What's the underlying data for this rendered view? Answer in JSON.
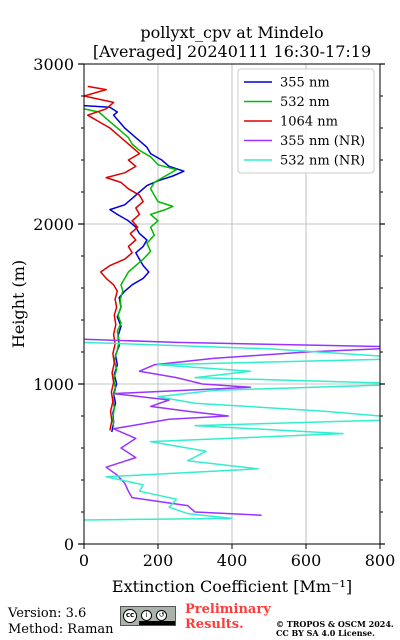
{
  "chart_data": {
    "type": "line",
    "title": [
      "pollyxt_cpv at Mindelo",
      "[Averaged] 20240111 16:30-17:19"
    ],
    "xlabel": "Extinction Coefficient [Mm⁻¹]",
    "ylabel": "Height (m)",
    "xlim": [
      0,
      800
    ],
    "ylim": [
      0,
      3000
    ],
    "xticks": [
      0,
      200,
      400,
      600,
      800
    ],
    "yticks": [
      0,
      1000,
      2000,
      3000
    ],
    "grid": true,
    "legend_position": "top-right",
    "series": [
      {
        "name": "355 nm",
        "color": "#0000dd",
        "points": [
          [
            75,
            700
          ],
          [
            80,
            760
          ],
          [
            78,
            820
          ],
          [
            85,
            880
          ],
          [
            80,
            940
          ],
          [
            88,
            1000
          ],
          [
            82,
            1060
          ],
          [
            90,
            1120
          ],
          [
            85,
            1180
          ],
          [
            95,
            1240
          ],
          [
            92,
            1300
          ],
          [
            100,
            1360
          ],
          [
            90,
            1420
          ],
          [
            100,
            1480
          ],
          [
            95,
            1540
          ],
          [
            110,
            1580
          ],
          [
            130,
            1620
          ],
          [
            160,
            1660
          ],
          [
            175,
            1700
          ],
          [
            160,
            1740
          ],
          [
            150,
            1780
          ],
          [
            140,
            1820
          ],
          [
            160,
            1860
          ],
          [
            170,
            1900
          ],
          [
            150,
            1940
          ],
          [
            140,
            1980
          ],
          [
            120,
            2020
          ],
          [
            90,
            2060
          ],
          [
            70,
            2090
          ],
          [
            110,
            2120
          ],
          [
            130,
            2160
          ],
          [
            150,
            2200
          ],
          [
            170,
            2240
          ],
          [
            200,
            2270
          ],
          [
            240,
            2300
          ],
          [
            270,
            2330
          ],
          [
            230,
            2360
          ],
          [
            210,
            2400
          ],
          [
            180,
            2440
          ],
          [
            170,
            2480
          ],
          [
            150,
            2520
          ],
          [
            130,
            2560
          ],
          [
            110,
            2600
          ],
          [
            95,
            2640
          ],
          [
            80,
            2680
          ],
          [
            90,
            2700
          ],
          [
            70,
            2730
          ],
          [
            0,
            2740
          ]
        ]
      },
      {
        "name": "532 nm",
        "color": "#00bb00",
        "points": [
          [
            80,
            730
          ],
          [
            78,
            790
          ],
          [
            82,
            850
          ],
          [
            78,
            910
          ],
          [
            85,
            970
          ],
          [
            80,
            1030
          ],
          [
            88,
            1090
          ],
          [
            82,
            1150
          ],
          [
            90,
            1210
          ],
          [
            95,
            1270
          ],
          [
            90,
            1330
          ],
          [
            100,
            1380
          ],
          [
            92,
            1430
          ],
          [
            100,
            1480
          ],
          [
            98,
            1530
          ],
          [
            105,
            1580
          ],
          [
            100,
            1620
          ],
          [
            110,
            1660
          ],
          [
            120,
            1700
          ],
          [
            140,
            1740
          ],
          [
            160,
            1780
          ],
          [
            180,
            1830
          ],
          [
            170,
            1880
          ],
          [
            190,
            1930
          ],
          [
            180,
            1980
          ],
          [
            200,
            2020
          ],
          [
            180,
            2060
          ],
          [
            220,
            2090
          ],
          [
            240,
            2110
          ],
          [
            200,
            2140
          ],
          [
            190,
            2180
          ],
          [
            180,
            2220
          ],
          [
            190,
            2260
          ],
          [
            220,
            2300
          ],
          [
            250,
            2340
          ],
          [
            200,
            2370
          ],
          [
            180,
            2420
          ],
          [
            150,
            2460
          ],
          [
            130,
            2500
          ],
          [
            120,
            2540
          ],
          [
            100,
            2580
          ],
          [
            80,
            2620
          ],
          [
            60,
            2660
          ],
          [
            40,
            2700
          ],
          [
            0,
            2720
          ]
        ]
      },
      {
        "name": "1064 nm",
        "color": "#dd0000",
        "points": [
          [
            70,
            710
          ],
          [
            75,
            770
          ],
          [
            72,
            830
          ],
          [
            78,
            890
          ],
          [
            74,
            950
          ],
          [
            80,
            1010
          ],
          [
            76,
            1070
          ],
          [
            82,
            1130
          ],
          [
            78,
            1190
          ],
          [
            84,
            1250
          ],
          [
            80,
            1310
          ],
          [
            86,
            1370
          ],
          [
            82,
            1430
          ],
          [
            88,
            1480
          ],
          [
            84,
            1530
          ],
          [
            90,
            1580
          ],
          [
            80,
            1620
          ],
          [
            60,
            1660
          ],
          [
            45,
            1700
          ],
          [
            70,
            1740
          ],
          [
            110,
            1780
          ],
          [
            130,
            1820
          ],
          [
            120,
            1860
          ],
          [
            140,
            1900
          ],
          [
            125,
            1940
          ],
          [
            145,
            1980
          ],
          [
            130,
            2020
          ],
          [
            150,
            2060
          ],
          [
            140,
            2100
          ],
          [
            160,
            2140
          ],
          [
            150,
            2180
          ],
          [
            120,
            2220
          ],
          [
            100,
            2260
          ],
          [
            60,
            2290
          ],
          [
            110,
            2320
          ],
          [
            140,
            2360
          ],
          [
            120,
            2400
          ],
          [
            150,
            2440
          ],
          [
            130,
            2480
          ],
          [
            110,
            2520
          ],
          [
            90,
            2560
          ],
          [
            70,
            2600
          ],
          [
            40,
            2640
          ],
          [
            10,
            2680
          ],
          [
            60,
            2720
          ],
          [
            80,
            2760
          ],
          [
            0,
            2800
          ],
          [
            60,
            2840
          ],
          [
            10,
            2860
          ]
        ]
      },
      {
        "name": "355 nm (NR)",
        "color": "#9933ff",
        "points": [
          [
            480,
            180
          ],
          [
            300,
            200
          ],
          [
            280,
            240
          ],
          [
            130,
            290
          ],
          [
            120,
            330
          ],
          [
            110,
            380
          ],
          [
            90,
            430
          ],
          [
            60,
            480
          ],
          [
            140,
            540
          ],
          [
            100,
            600
          ],
          [
            140,
            660
          ],
          [
            80,
            720
          ],
          [
            230,
            780
          ],
          [
            390,
            800
          ],
          [
            280,
            830
          ],
          [
            180,
            860
          ],
          [
            230,
            900
          ],
          [
            80,
            940
          ],
          [
            450,
            980
          ],
          [
            320,
            1000
          ],
          [
            250,
            1040
          ],
          [
            150,
            1080
          ],
          [
            190,
            1120
          ],
          [
            350,
            1160
          ],
          [
            600,
            1200
          ],
          [
            900,
            1230
          ],
          [
            250,
            1260
          ],
          [
            0,
            1280
          ]
        ]
      },
      {
        "name": "532 nm (NR)",
        "color": "#33eecc",
        "points": [
          [
            0,
            150
          ],
          [
            400,
            160
          ],
          [
            280,
            190
          ],
          [
            230,
            230
          ],
          [
            250,
            280
          ],
          [
            150,
            330
          ],
          [
            160,
            370
          ],
          [
            60,
            420
          ],
          [
            470,
            470
          ],
          [
            280,
            520
          ],
          [
            330,
            580
          ],
          [
            180,
            640
          ],
          [
            700,
            690
          ],
          [
            300,
            740
          ],
          [
            900,
            780
          ],
          [
            650,
            830
          ],
          [
            300,
            880
          ],
          [
            200,
            920
          ],
          [
            350,
            960
          ],
          [
            900,
            1000
          ],
          [
            300,
            1040
          ],
          [
            450,
            1080
          ],
          [
            200,
            1120
          ],
          [
            900,
            1160
          ],
          [
            700,
            1190
          ],
          [
            500,
            1220
          ],
          [
            0,
            1260
          ]
        ]
      }
    ]
  },
  "footer": {
    "version": "Version: 3.6",
    "method": "Method: Raman",
    "license_badge": "cc-by-sa-icon",
    "preliminary": [
      "Preliminary",
      "Results."
    ],
    "copyright": [
      "© TROPOS & OSCM 2024.",
      "CC BY SA 4.0 License."
    ]
  }
}
